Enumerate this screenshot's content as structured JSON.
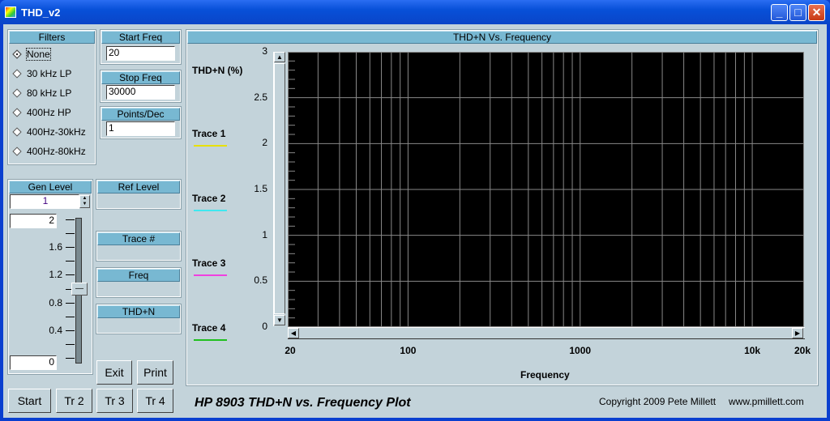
{
  "window": {
    "title": "THD_v2",
    "minimize": "_",
    "maximize": "□",
    "close": "✕"
  },
  "filters": {
    "header": "Filters",
    "options": [
      "None",
      "30 kHz LP",
      "80 kHz LP",
      "400Hz HP",
      "400Hz-30kHz",
      "400Hz-80kHz"
    ],
    "selected": "None"
  },
  "start_freq": {
    "label": "Start Freq",
    "value": "20"
  },
  "stop_freq": {
    "label": "Stop Freq",
    "value": "30000"
  },
  "points_dec": {
    "label": "Points/Dec",
    "value": "1"
  },
  "gen_level": {
    "label": "Gen Level",
    "value": "1",
    "slider_max": "2",
    "slider_min": "0",
    "slider_value": 1.0,
    "ticks": [
      "1.6",
      "1.2",
      "0.8",
      "0.4"
    ]
  },
  "ref_level": {
    "label": "Ref Level"
  },
  "trace_num": {
    "label": "Trace #"
  },
  "freq": {
    "label": "Freq"
  },
  "thdn": {
    "label": "THD+N"
  },
  "buttons": {
    "exit": "Exit",
    "print": "Print",
    "start": "Start",
    "tr2": "Tr 2",
    "tr3": "Tr 3",
    "tr4": "Tr 4"
  },
  "footer": {
    "title": "HP 8903 THD+N vs. Frequency Plot",
    "copyright": "Copyright 2009 Pete Millett",
    "website": "www.pmillett.com"
  },
  "chart_data": {
    "type": "line",
    "title": "THD+N Vs. Frequency",
    "xlabel": "Frequency",
    "ylabel": "THD+N (%)",
    "xscale": "log",
    "xlim": [
      20,
      20000
    ],
    "ylim": [
      0,
      3
    ],
    "grid": true,
    "legend": "left",
    "xticks": [
      "20",
      "100",
      "1000",
      "10k",
      "20k"
    ],
    "yticks": [
      "0",
      "0.5",
      "1",
      "1.5",
      "2",
      "2.5",
      "3"
    ],
    "background": "#000000",
    "series": [
      {
        "name": "Trace 1",
        "color": "#e8e000",
        "values": []
      },
      {
        "name": "Trace 2",
        "color": "#40e8f0",
        "values": []
      },
      {
        "name": "Trace 3",
        "color": "#f040e0",
        "values": []
      },
      {
        "name": "Trace 4",
        "color": "#20c020",
        "values": []
      }
    ]
  }
}
